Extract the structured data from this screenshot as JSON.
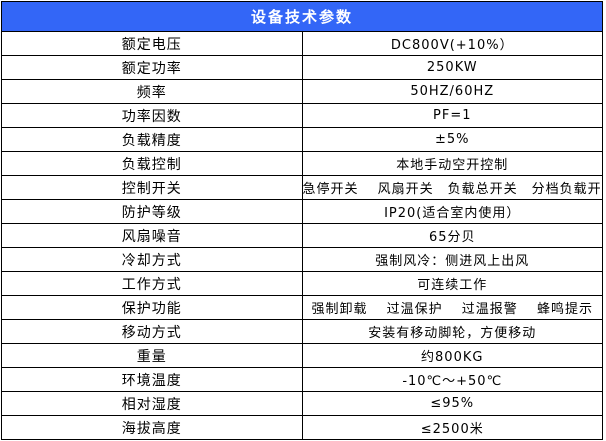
{
  "header": {
    "title": "设备技术参数"
  },
  "colors": {
    "header_bg": "#3366f7",
    "header_text": "#ffffff",
    "border": "#000000",
    "body_text": "#000000",
    "background": "#ffffff"
  },
  "table": {
    "rows": [
      {
        "label": "额定电压",
        "value": "DC800V(+10%）"
      },
      {
        "label": "额定功率",
        "value": "250KW"
      },
      {
        "label": "频率",
        "value": "50HZ/60HZ"
      },
      {
        "label": "功率因数",
        "value": "PF=1"
      },
      {
        "label": "负载精度",
        "value": "±5%"
      },
      {
        "label": "负载控制",
        "value": "本地手动空开控制"
      },
      {
        "label": "控制开关",
        "value": "急停开关　 风扇开关　负载总开关　分档负载开关　档位开关"
      },
      {
        "label": "防护等级",
        "value": "IP20(适合室内使用）"
      },
      {
        "label": "风扇噪音",
        "value": "65分贝"
      },
      {
        "label": "冷却方式",
        "value": "强制风冷：侧进风上出风"
      },
      {
        "label": "工作方式",
        "value": "可连续工作"
      },
      {
        "label": "保护功能",
        "value": "强制卸载　 过温保护　 过温报警　 蜂鸣提示"
      },
      {
        "label": "移动方式",
        "value": "安装有移动脚轮，方便移动"
      },
      {
        "label": "重量",
        "value": "约800KG"
      },
      {
        "label": "环境温度",
        "value": "-10℃～+50℃"
      },
      {
        "label": "相对湿度",
        "value": "≤95%"
      },
      {
        "label": "海拔高度",
        "value": "≤2500米"
      }
    ]
  }
}
